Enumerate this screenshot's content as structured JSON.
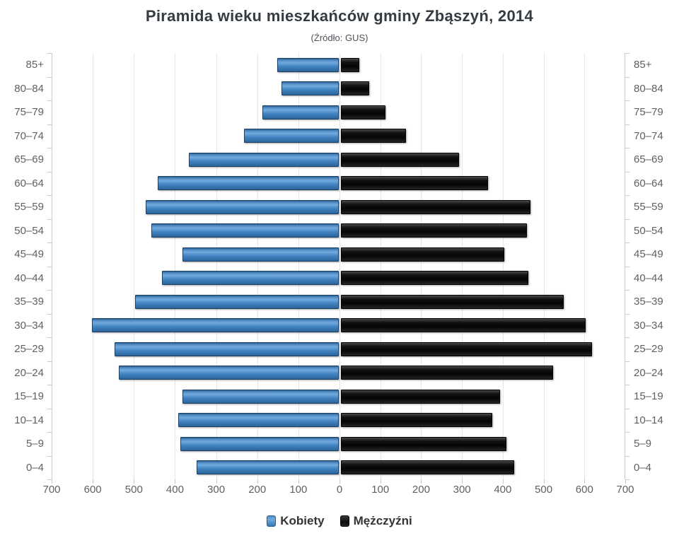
{
  "chart_data": {
    "type": "bar",
    "variant": "population-pyramid",
    "title": "Piramida wieku mieszkańców gminy Zbąszyń, 2014",
    "subtitle": "(Źródło: GUS)",
    "categories": [
      "85+",
      "80–84",
      "75–79",
      "70–74",
      "65–69",
      "60–64",
      "55–59",
      "50–54",
      "45–49",
      "40–44",
      "35–39",
      "30–34",
      "25–29",
      "20–24",
      "15–19",
      "10–14",
      "5–9",
      "0–4"
    ],
    "categories_order": "top-to-bottom",
    "series": [
      {
        "name": "Kobiety",
        "side": "left",
        "color": "#4586c4",
        "values": [
          150,
          140,
          185,
          230,
          365,
          440,
          470,
          455,
          380,
          430,
          495,
          600,
          545,
          535,
          380,
          390,
          385,
          345
        ]
      },
      {
        "name": "Mężczyźni",
        "side": "right",
        "color": "#141414",
        "values": [
          45,
          70,
          110,
          160,
          290,
          360,
          465,
          455,
          400,
          460,
          545,
          600,
          615,
          520,
          390,
          370,
          405,
          425
        ]
      }
    ],
    "x_ticks": [
      700,
      600,
      500,
      400,
      300,
      200,
      100,
      0,
      100,
      200,
      300,
      400,
      500,
      600,
      700
    ],
    "axis_max_each_side": 700,
    "grid": true,
    "category_labels_both_sides": true,
    "legend_position": "bottom",
    "xlabel": "",
    "ylabel": ""
  },
  "colors": {
    "female_bar": "#4586c4",
    "male_bar": "#141414",
    "gridline": "#e6e6e6",
    "axis_line": "#c6ccd2",
    "tick_label": "#606060",
    "title_text": "#343b42"
  }
}
